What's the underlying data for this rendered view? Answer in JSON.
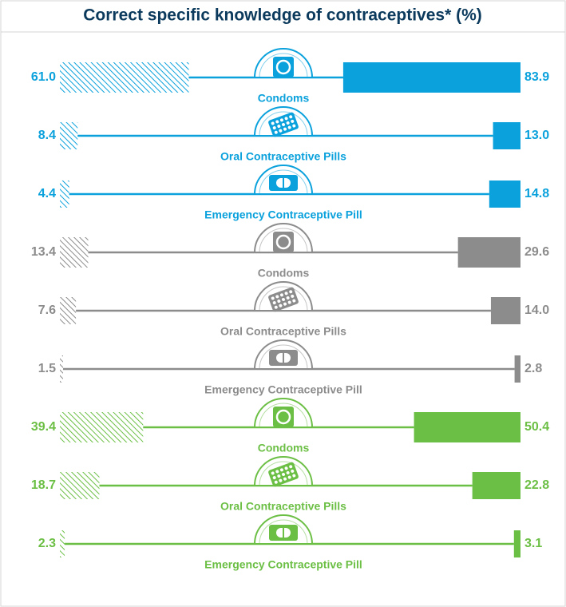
{
  "chart_data": {
    "type": "butterfly",
    "title": "Correct specific knowledge of contraceptives* (%)",
    "categories": [
      "Condoms",
      "Oral Contraceptive Pills",
      "Emergency Contraceptive Pill",
      "Condoms",
      "Oral Contraceptive Pills",
      "Emergency Contraceptive Pill",
      "Condoms",
      "Oral Contraceptive Pills",
      "Emergency Contraceptive Pill"
    ],
    "series": [
      {
        "values": [
          61.0,
          8.4,
          4.4,
          13.4,
          7.6,
          1.5,
          39.4,
          18.7,
          2.3
        ],
        "value_labels": [
          "61.0",
          "8.4",
          "4.4",
          "13.4",
          "7.6",
          "1.5",
          "39.4",
          "18.7",
          "2.3"
        ]
      },
      {
        "values": [
          83.9,
          13.0,
          14.8,
          29.6,
          14.0,
          2.8,
          50.4,
          22.8,
          3.1
        ],
        "value_labels": [
          "83.9",
          "13.0",
          "14.8",
          "29.6",
          "14.0",
          "2.8",
          "50.4",
          "22.8",
          "3.1"
        ]
      }
    ],
    "colors": [
      "#0aa1dc",
      "#0aa1dc",
      "#0aa1dc",
      "#8c8c8c",
      "#8c8c8c",
      "#8c8c8c",
      "#6cbf45",
      "#6cbf45",
      "#6cbf45"
    ],
    "xlim": [
      0,
      85
    ]
  }
}
